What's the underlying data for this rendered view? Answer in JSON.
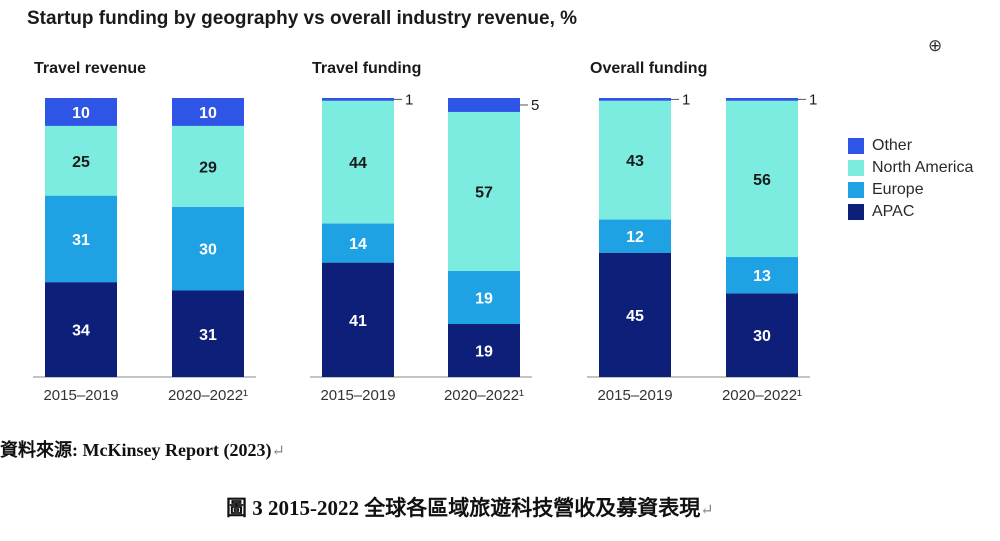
{
  "title": "Startup funding by geography vs overall industry revenue, %",
  "anchor_icon": "⊕",
  "source": "資料來源: McKinsey Report (2023)",
  "caption": "圖 3 2015-2022 全球各區域旅遊科技營收及募資表現",
  "return_mark": "↵",
  "colors": {
    "Other": "#2f55e6",
    "North America": "#7cece0",
    "Europe": "#1ea2e3",
    "APAC": "#0d1f78"
  },
  "chart_data": [
    {
      "type": "bar",
      "stacked": true,
      "title": "Travel revenue",
      "categories": [
        "2015–2019",
        "2020–2022¹"
      ],
      "series": [
        {
          "name": "APAC",
          "values": [
            34,
            31
          ]
        },
        {
          "name": "Europe",
          "values": [
            31,
            30
          ]
        },
        {
          "name": "North America",
          "values": [
            25,
            29
          ]
        },
        {
          "name": "Other",
          "values": [
            10,
            10
          ]
        }
      ],
      "ylim": [
        0,
        100
      ]
    },
    {
      "type": "bar",
      "stacked": true,
      "title": "Travel funding",
      "categories": [
        "2015–2019",
        "2020–2022¹"
      ],
      "series": [
        {
          "name": "APAC",
          "values": [
            41,
            19
          ]
        },
        {
          "name": "Europe",
          "values": [
            14,
            19
          ]
        },
        {
          "name": "North America",
          "values": [
            44,
            57
          ]
        },
        {
          "name": "Other",
          "values": [
            1,
            5
          ]
        }
      ],
      "ylim": [
        0,
        100
      ]
    },
    {
      "type": "bar",
      "stacked": true,
      "title": "Overall funding",
      "categories": [
        "2015–2019",
        "2020–2022¹"
      ],
      "series": [
        {
          "name": "APAC",
          "values": [
            45,
            30
          ]
        },
        {
          "name": "Europe",
          "values": [
            12,
            13
          ]
        },
        {
          "name": "North America",
          "values": [
            43,
            56
          ]
        },
        {
          "name": "Other",
          "values": [
            1,
            1
          ]
        }
      ],
      "ylim": [
        0,
        100
      ]
    }
  ],
  "legend": [
    "Other",
    "North America",
    "Europe",
    "APAC"
  ]
}
